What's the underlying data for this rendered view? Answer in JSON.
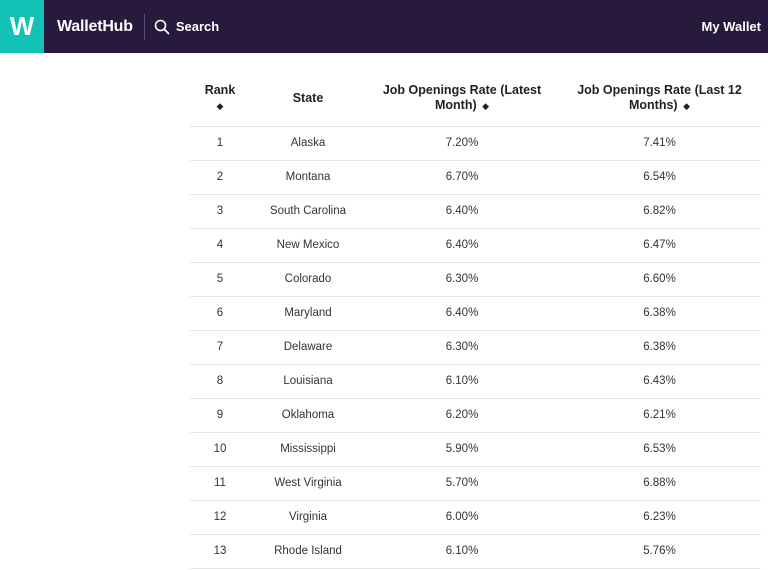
{
  "header": {
    "logo_letter": "W",
    "brand": "WalletHub",
    "search_label": "Search",
    "my_wallet": "My Wallet",
    "colors": {
      "bar": "#271a3d",
      "logo": "#12c3b5"
    }
  },
  "table": {
    "columns": [
      {
        "label": "Rank",
        "sort_icon": "◆"
      },
      {
        "label": "State",
        "sort_icon": ""
      },
      {
        "label_line1": "Job Openings Rate (Latest",
        "label_line2": "Month)",
        "sort_icon": "◆"
      },
      {
        "label_line1": "Job Openings Rate (Last 12",
        "label_line2": "Months)",
        "sort_icon": "◆"
      }
    ],
    "rows": [
      {
        "rank": "1",
        "state": "Alaska",
        "latest": "7.20%",
        "last12": "7.41%"
      },
      {
        "rank": "2",
        "state": "Montana",
        "latest": "6.70%",
        "last12": "6.54%"
      },
      {
        "rank": "3",
        "state": "South Carolina",
        "latest": "6.40%",
        "last12": "6.82%"
      },
      {
        "rank": "4",
        "state": "New Mexico",
        "latest": "6.40%",
        "last12": "6.47%"
      },
      {
        "rank": "5",
        "state": "Colorado",
        "latest": "6.30%",
        "last12": "6.60%"
      },
      {
        "rank": "6",
        "state": "Maryland",
        "latest": "6.40%",
        "last12": "6.38%"
      },
      {
        "rank": "7",
        "state": "Delaware",
        "latest": "6.30%",
        "last12": "6.38%"
      },
      {
        "rank": "8",
        "state": "Louisiana",
        "latest": "6.10%",
        "last12": "6.43%"
      },
      {
        "rank": "9",
        "state": "Oklahoma",
        "latest": "6.20%",
        "last12": "6.21%"
      },
      {
        "rank": "10",
        "state": "Mississippi",
        "latest": "5.90%",
        "last12": "6.53%"
      },
      {
        "rank": "11",
        "state": "West Virginia",
        "latest": "5.70%",
        "last12": "6.88%"
      },
      {
        "rank": "12",
        "state": "Virginia",
        "latest": "6.00%",
        "last12": "6.23%"
      },
      {
        "rank": "13",
        "state": "Rhode Island",
        "latest": "6.10%",
        "last12": "5.76%"
      }
    ]
  }
}
